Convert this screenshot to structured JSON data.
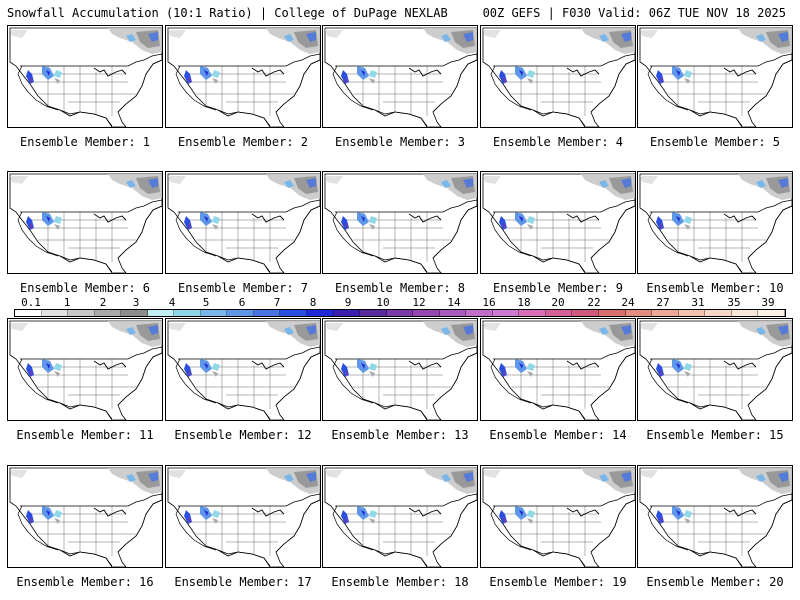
{
  "header": {
    "left": "Snowfall Accumulation (10:1 Ratio) | College of DuPage NEXLAB",
    "right": "00Z GEFS | F030 Valid: 06Z TUE NOV 18 2025"
  },
  "members": [
    {
      "label": "Ensemble Member: 1"
    },
    {
      "label": "Ensemble Member: 2"
    },
    {
      "label": "Ensemble Member: 3"
    },
    {
      "label": "Ensemble Member: 4"
    },
    {
      "label": "Ensemble Member: 5"
    },
    {
      "label": "Ensemble Member: 6"
    },
    {
      "label": "Ensemble Member: 7"
    },
    {
      "label": "Ensemble Member: 8"
    },
    {
      "label": "Ensemble Member: 9"
    },
    {
      "label": "Ensemble Member: 10"
    },
    {
      "label": "Ensemble Member: 11"
    },
    {
      "label": "Ensemble Member: 12"
    },
    {
      "label": "Ensemble Member: 13"
    },
    {
      "label": "Ensemble Member: 14"
    },
    {
      "label": "Ensemble Member: 15"
    },
    {
      "label": "Ensemble Member: 16"
    },
    {
      "label": "Ensemble Member: 17"
    },
    {
      "label": "Ensemble Member: 18"
    },
    {
      "label": "Ensemble Member: 19"
    },
    {
      "label": "Ensemble Member: 20"
    }
  ],
  "scale": {
    "ticks": [
      "0.1",
      "1",
      "2",
      "3",
      "4",
      "5",
      "6",
      "7",
      "8",
      "9",
      "10",
      "12",
      "14",
      "16",
      "18",
      "20",
      "22",
      "24",
      "27",
      "31",
      "35",
      "39"
    ],
    "colors": [
      "#ffffff",
      "#e2e2e2",
      "#c8c8c8",
      "#a9a9a9",
      "#8c8c8c",
      "#bfeff2",
      "#8fd8e8",
      "#79b7ea",
      "#5f97e8",
      "#4a74e3",
      "#2a4ee0",
      "#1f28d8",
      "#3d1fb0",
      "#5a2b9e",
      "#7a3aa8",
      "#9447b0",
      "#a95bbd",
      "#c06ec9",
      "#cc7ad2",
      "#d86fb8",
      "#d5609a",
      "#cf5a7d",
      "#d86e6e",
      "#e38d82",
      "#eda898",
      "#f4c3b0",
      "#f8d8c6",
      "#fbe8d8",
      "#fdf3e8"
    ]
  }
}
